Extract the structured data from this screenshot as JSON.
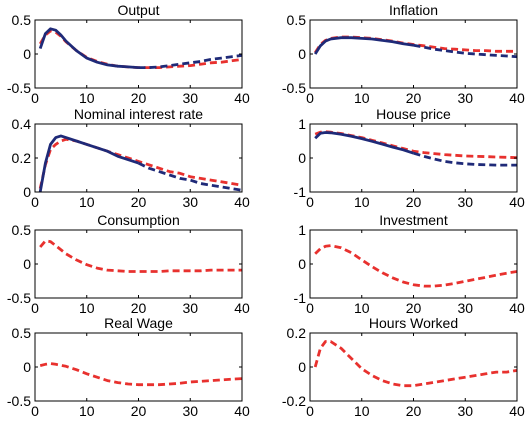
{
  "chart_data": [
    {
      "type": "line",
      "title": "Output",
      "xlim": [
        0,
        40
      ],
      "ylim": [
        -0.5,
        0.5
      ],
      "xticks": [
        0,
        10,
        20,
        30,
        40
      ],
      "yticks": [
        -0.5,
        0,
        0.5
      ],
      "xtick_labels": [
        "0",
        "10",
        "20",
        "30",
        "40"
      ],
      "ytick_labels": [
        "-0.5",
        "0",
        "0.5"
      ],
      "series": [
        {
          "style": "dashed",
          "color": "#e8312e",
          "x": [
            1,
            2,
            3,
            4,
            5,
            6,
            8,
            10,
            12,
            14,
            16,
            18,
            20,
            22,
            24,
            26,
            28,
            30,
            32,
            34,
            36,
            38,
            40
          ],
          "y": [
            0.15,
            0.28,
            0.34,
            0.32,
            0.26,
            0.18,
            0.05,
            -0.05,
            -0.11,
            -0.15,
            -0.18,
            -0.19,
            -0.2,
            -0.2,
            -0.2,
            -0.19,
            -0.18,
            -0.17,
            -0.15,
            -0.13,
            -0.12,
            -0.1,
            -0.08
          ]
        },
        {
          "style": "solid-then-dashed",
          "color": "#1f2a78",
          "switch_x": 21,
          "x": [
            1,
            2,
            3,
            4,
            5,
            6,
            8,
            10,
            12,
            14,
            16,
            18,
            20,
            22,
            24,
            26,
            28,
            30,
            32,
            34,
            36,
            38,
            40
          ],
          "y": [
            0.08,
            0.3,
            0.37,
            0.35,
            0.28,
            0.19,
            0.05,
            -0.06,
            -0.12,
            -0.16,
            -0.18,
            -0.19,
            -0.2,
            -0.2,
            -0.19,
            -0.17,
            -0.15,
            -0.13,
            -0.11,
            -0.08,
            -0.06,
            -0.04,
            -0.02
          ]
        }
      ]
    },
    {
      "type": "line",
      "title": "Inflation",
      "xlim": [
        0,
        40
      ],
      "ylim": [
        -0.5,
        0.5
      ],
      "xticks": [
        0,
        10,
        20,
        30,
        40
      ],
      "yticks": [
        -0.5,
        0,
        0.5
      ],
      "xtick_labels": [
        "0",
        "10",
        "20",
        "30",
        "40"
      ],
      "ytick_labels": [
        "-0.5",
        "0",
        "0.5"
      ],
      "series": [
        {
          "style": "dashed",
          "color": "#e8312e",
          "x": [
            1,
            2,
            3,
            4,
            6,
            8,
            10,
            12,
            14,
            16,
            18,
            20,
            22,
            24,
            26,
            28,
            30,
            32,
            34,
            36,
            38,
            40
          ],
          "y": [
            0.02,
            0.14,
            0.2,
            0.23,
            0.25,
            0.25,
            0.24,
            0.23,
            0.21,
            0.19,
            0.16,
            0.14,
            0.12,
            0.1,
            0.08,
            0.07,
            0.06,
            0.05,
            0.05,
            0.04,
            0.04,
            0.04
          ]
        },
        {
          "style": "solid-then-dashed",
          "color": "#1f2a78",
          "switch_x": 21,
          "x": [
            1,
            2,
            3,
            4,
            6,
            8,
            10,
            12,
            14,
            16,
            18,
            20,
            22,
            24,
            26,
            28,
            30,
            32,
            34,
            36,
            38,
            40
          ],
          "y": [
            0.0,
            0.12,
            0.19,
            0.22,
            0.24,
            0.24,
            0.23,
            0.22,
            0.2,
            0.18,
            0.15,
            0.13,
            0.1,
            0.07,
            0.05,
            0.03,
            0.01,
            0.0,
            -0.01,
            -0.02,
            -0.03,
            -0.04
          ]
        }
      ]
    },
    {
      "type": "line",
      "title": "Nominal interest rate",
      "xlim": [
        0,
        40
      ],
      "ylim": [
        0,
        0.4
      ],
      "xticks": [
        0,
        10,
        20,
        30,
        40
      ],
      "yticks": [
        0,
        0.2,
        0.4
      ],
      "xtick_labels": [
        "0",
        "10",
        "20",
        "30",
        "40"
      ],
      "ytick_labels": [
        "0",
        "0.2",
        "0.4"
      ],
      "series": [
        {
          "style": "dashed",
          "color": "#e8312e",
          "x": [
            1,
            2,
            3,
            4,
            5,
            6,
            8,
            10,
            12,
            14,
            16,
            18,
            20,
            22,
            24,
            26,
            28,
            30,
            32,
            34,
            36,
            38,
            40
          ],
          "y": [
            0.02,
            0.16,
            0.25,
            0.28,
            0.3,
            0.31,
            0.3,
            0.28,
            0.26,
            0.24,
            0.22,
            0.2,
            0.18,
            0.16,
            0.14,
            0.12,
            0.11,
            0.09,
            0.08,
            0.07,
            0.06,
            0.05,
            0.04
          ]
        },
        {
          "style": "solid-then-dashed",
          "color": "#1f2a78",
          "switch_x": 21,
          "x": [
            1,
            2,
            3,
            4,
            5,
            6,
            8,
            10,
            12,
            14,
            16,
            18,
            20,
            22,
            24,
            26,
            28,
            30,
            32,
            34,
            36,
            38,
            40
          ],
          "y": [
            0.0,
            0.17,
            0.28,
            0.32,
            0.33,
            0.32,
            0.3,
            0.28,
            0.26,
            0.24,
            0.21,
            0.19,
            0.17,
            0.14,
            0.12,
            0.1,
            0.08,
            0.07,
            0.05,
            0.04,
            0.03,
            0.02,
            0.01
          ]
        }
      ]
    },
    {
      "type": "line",
      "title": "House price",
      "xlim": [
        0,
        40
      ],
      "ylim": [
        -1,
        1
      ],
      "xticks": [
        0,
        10,
        20,
        30,
        40
      ],
      "yticks": [
        -1,
        0,
        1
      ],
      "xtick_labels": [
        "0",
        "10",
        "20",
        "30",
        "40"
      ],
      "ytick_labels": [
        "-1",
        "0",
        "1"
      ],
      "series": [
        {
          "style": "dashed",
          "color": "#e8312e",
          "x": [
            1,
            2,
            3,
            4,
            6,
            8,
            10,
            12,
            14,
            16,
            18,
            20,
            22,
            24,
            26,
            28,
            30,
            32,
            34,
            36,
            38,
            40
          ],
          "y": [
            0.7,
            0.76,
            0.77,
            0.76,
            0.72,
            0.66,
            0.6,
            0.52,
            0.44,
            0.36,
            0.28,
            0.2,
            0.16,
            0.13,
            0.1,
            0.08,
            0.06,
            0.05,
            0.04,
            0.03,
            0.02,
            0.01
          ]
        },
        {
          "style": "solid-then-dashed",
          "color": "#1f2a78",
          "switch_x": 21,
          "x": [
            1,
            2,
            3,
            4,
            6,
            8,
            10,
            12,
            14,
            16,
            18,
            20,
            22,
            24,
            26,
            28,
            30,
            32,
            34,
            36,
            38,
            40
          ],
          "y": [
            0.58,
            0.73,
            0.75,
            0.74,
            0.7,
            0.64,
            0.57,
            0.49,
            0.41,
            0.32,
            0.24,
            0.14,
            0.05,
            -0.03,
            -0.1,
            -0.14,
            -0.17,
            -0.19,
            -0.2,
            -0.21,
            -0.21,
            -0.21
          ]
        }
      ]
    },
    {
      "type": "line",
      "title": "Consumption",
      "xlim": [
        0,
        40
      ],
      "ylim": [
        -0.5,
        0.5
      ],
      "xticks": [
        0,
        10,
        20,
        30,
        40
      ],
      "yticks": [
        -0.5,
        0,
        0.5
      ],
      "xtick_labels": [
        "0",
        "10",
        "20",
        "30",
        "40"
      ],
      "ytick_labels": [
        "-0.5",
        "0",
        "0.5"
      ],
      "series": [
        {
          "style": "dashed",
          "color": "#e8312e",
          "x": [
            1,
            2,
            3,
            4,
            6,
            8,
            10,
            12,
            14,
            16,
            18,
            20,
            22,
            24,
            26,
            28,
            30,
            32,
            34,
            36,
            38,
            40
          ],
          "y": [
            0.25,
            0.34,
            0.33,
            0.27,
            0.15,
            0.06,
            -0.01,
            -0.06,
            -0.09,
            -0.1,
            -0.11,
            -0.11,
            -0.11,
            -0.11,
            -0.1,
            -0.1,
            -0.1,
            -0.1,
            -0.09,
            -0.09,
            -0.09,
            -0.09
          ]
        }
      ]
    },
    {
      "type": "line",
      "title": "Investment",
      "xlim": [
        0,
        40
      ],
      "ylim": [
        -1,
        1
      ],
      "xticks": [
        0,
        10,
        20,
        30,
        40
      ],
      "yticks": [
        -1,
        0,
        1
      ],
      "xtick_labels": [
        "0",
        "10",
        "20",
        "30",
        "40"
      ],
      "ytick_labels": [
        "-1",
        "0",
        "1"
      ],
      "series": [
        {
          "style": "dashed",
          "color": "#e8312e",
          "x": [
            1,
            2,
            3,
            4,
            6,
            8,
            10,
            12,
            14,
            16,
            18,
            20,
            22,
            24,
            26,
            28,
            30,
            32,
            34,
            36,
            38,
            40
          ],
          "y": [
            0.3,
            0.45,
            0.52,
            0.54,
            0.48,
            0.33,
            0.12,
            -0.08,
            -0.26,
            -0.41,
            -0.53,
            -0.61,
            -0.65,
            -0.65,
            -0.62,
            -0.57,
            -0.51,
            -0.45,
            -0.39,
            -0.33,
            -0.27,
            -0.22
          ]
        }
      ]
    },
    {
      "type": "line",
      "title": "Real Wage",
      "xlim": [
        0,
        40
      ],
      "ylim": [
        -0.5,
        0.5
      ],
      "xticks": [
        0,
        10,
        20,
        30,
        40
      ],
      "yticks": [
        -0.5,
        0,
        0.5
      ],
      "xtick_labels": [
        "0",
        "10",
        "20",
        "30",
        "40"
      ],
      "ytick_labels": [
        "-0.5",
        "0",
        "0.5"
      ],
      "series": [
        {
          "style": "dashed",
          "color": "#e8312e",
          "x": [
            1,
            2,
            3,
            4,
            6,
            8,
            10,
            12,
            14,
            16,
            18,
            20,
            22,
            24,
            26,
            28,
            30,
            32,
            34,
            36,
            38,
            40
          ],
          "y": [
            0.02,
            0.04,
            0.05,
            0.04,
            0.01,
            -0.04,
            -0.1,
            -0.15,
            -0.2,
            -0.23,
            -0.25,
            -0.26,
            -0.26,
            -0.26,
            -0.25,
            -0.24,
            -0.22,
            -0.21,
            -0.2,
            -0.19,
            -0.18,
            -0.17
          ]
        }
      ]
    },
    {
      "type": "line",
      "title": "Hours Worked",
      "xlim": [
        0,
        40
      ],
      "ylim": [
        -0.2,
        0.2
      ],
      "xticks": [
        0,
        10,
        20,
        30,
        40
      ],
      "yticks": [
        -0.2,
        0,
        0.2
      ],
      "xtick_labels": [
        "0",
        "10",
        "20",
        "30",
        "40"
      ],
      "ytick_labels": [
        "-0.2",
        "0",
        "0.2"
      ],
      "series": [
        {
          "style": "dashed",
          "color": "#e8312e",
          "x": [
            1,
            2,
            3,
            4,
            6,
            8,
            10,
            12,
            14,
            16,
            18,
            20,
            22,
            24,
            26,
            28,
            30,
            32,
            34,
            36,
            38,
            40
          ],
          "y": [
            0.0,
            0.11,
            0.15,
            0.15,
            0.11,
            0.05,
            -0.01,
            -0.05,
            -0.08,
            -0.1,
            -0.11,
            -0.11,
            -0.1,
            -0.09,
            -0.08,
            -0.07,
            -0.06,
            -0.05,
            -0.04,
            -0.03,
            -0.03,
            -0.02
          ]
        }
      ]
    }
  ]
}
